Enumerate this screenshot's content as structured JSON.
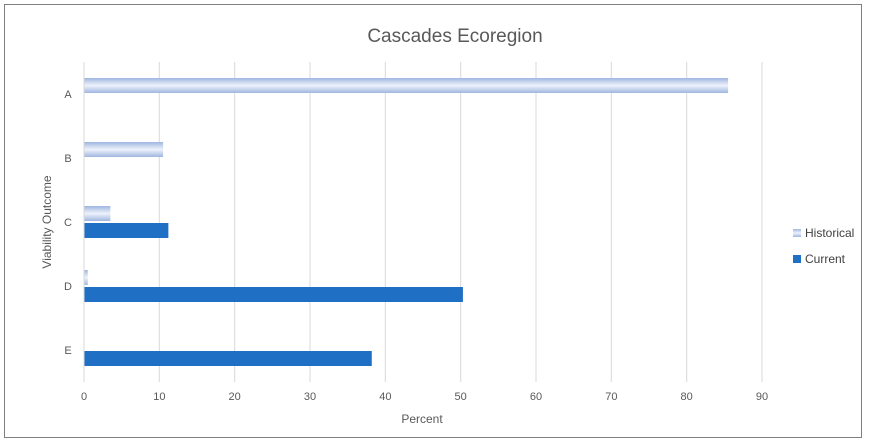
{
  "chart_data": {
    "type": "bar",
    "orientation": "horizontal",
    "title": "Cascades Ecoregion",
    "xlabel": "Percent",
    "ylabel": "Viability Outcome",
    "categories": [
      "A",
      "B",
      "C",
      "D",
      "E"
    ],
    "xlim": [
      0,
      90
    ],
    "xticks": [
      "0",
      "10",
      "20",
      "30",
      "40",
      "50",
      "60",
      "70",
      "80",
      "90"
    ],
    "grid": "vertical",
    "legend_position": "right",
    "series": [
      {
        "name": "Historical",
        "values": [
          85.5,
          10.5,
          3.5,
          0.5,
          0
        ],
        "color": "#bccbe8"
      },
      {
        "name": "Current",
        "values": [
          0,
          0,
          11.2,
          50.3,
          38.2
        ],
        "color": "#1f6fc4"
      }
    ]
  }
}
